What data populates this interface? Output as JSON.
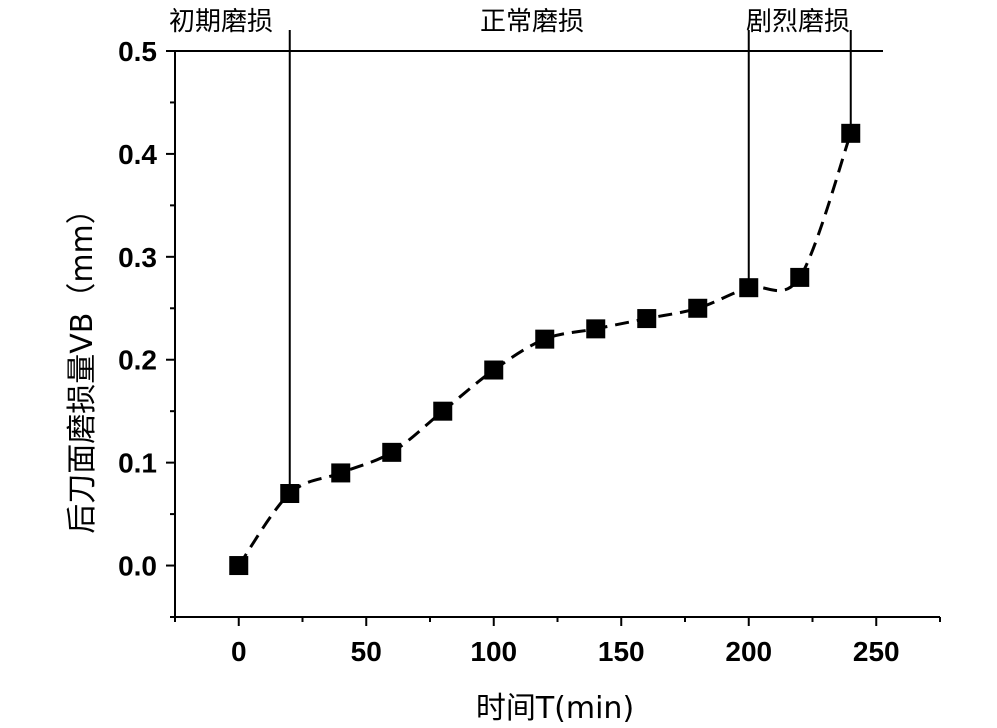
{
  "chart_data": {
    "type": "line",
    "title": "",
    "xlabel": "时间T(min)",
    "ylabel": "后刀面磨损量VB（mm）",
    "xlim": [
      -25,
      275
    ],
    "ylim": [
      -0.05,
      0.5
    ],
    "x_ticks": [
      0,
      50,
      100,
      150,
      200,
      250
    ],
    "y_ticks": [
      0.0,
      0.1,
      0.2,
      0.3,
      0.4,
      0.5
    ],
    "x_tick_labels": [
      "0",
      "50",
      "100",
      "150",
      "200",
      "250"
    ],
    "y_tick_labels": [
      "0.0",
      "0.1",
      "0.2",
      "0.3",
      "0.4",
      "0.5"
    ],
    "grid": false,
    "legend": "none",
    "series": [
      {
        "marker": "square",
        "line_style": "dashed",
        "color": "#000000",
        "x": [
          0,
          20,
          40,
          60,
          80,
          100,
          120,
          140,
          160,
          180,
          200,
          220,
          240
        ],
        "y": [
          0.0,
          0.07,
          0.09,
          0.11,
          0.15,
          0.19,
          0.22,
          0.23,
          0.24,
          0.25,
          0.27,
          0.28,
          0.42
        ]
      }
    ],
    "annotations": [
      {
        "text": "初期磨损",
        "x": 20
      },
      {
        "text": "正常磨损"
      },
      {
        "text": "剧烈磨损",
        "x": 200,
        "x2": 240
      }
    ]
  }
}
